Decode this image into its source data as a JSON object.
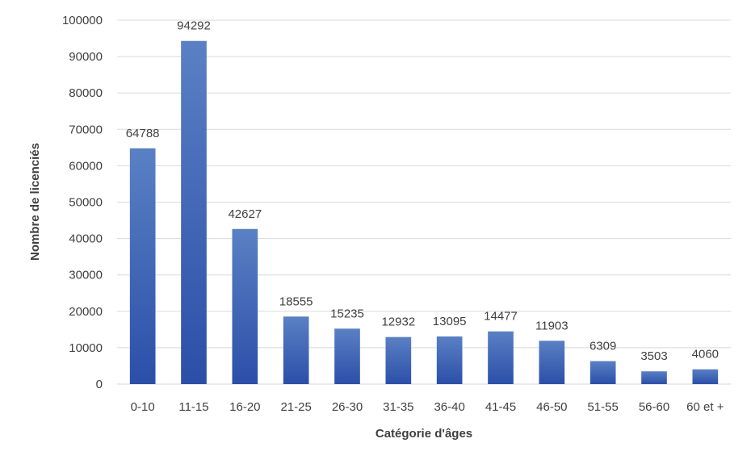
{
  "chart_data": {
    "type": "bar",
    "title": "",
    "xlabel": "Catégorie d'âges",
    "ylabel": "Nombre de licenciés",
    "categories": [
      "0-10",
      "11-15",
      "16-20",
      "21-25",
      "26-30",
      "31-35",
      "36-40",
      "41-45",
      "46-50",
      "51-55",
      "56-60",
      "60 et +"
    ],
    "values": [
      64788,
      94292,
      42627,
      18555,
      15235,
      12932,
      13095,
      14477,
      11903,
      6309,
      3503,
      4060
    ],
    "ylim": [
      0,
      100000
    ],
    "yticks": [
      "0",
      "10000",
      "20000",
      "30000",
      "40000",
      "50000",
      "60000",
      "70000",
      "80000",
      "90000",
      "100000"
    ],
    "grid": true,
    "bar_color_top": "#5a80c4",
    "bar_color_bottom": "#2b4fa8",
    "grid_color": "#d9d9d9"
  }
}
